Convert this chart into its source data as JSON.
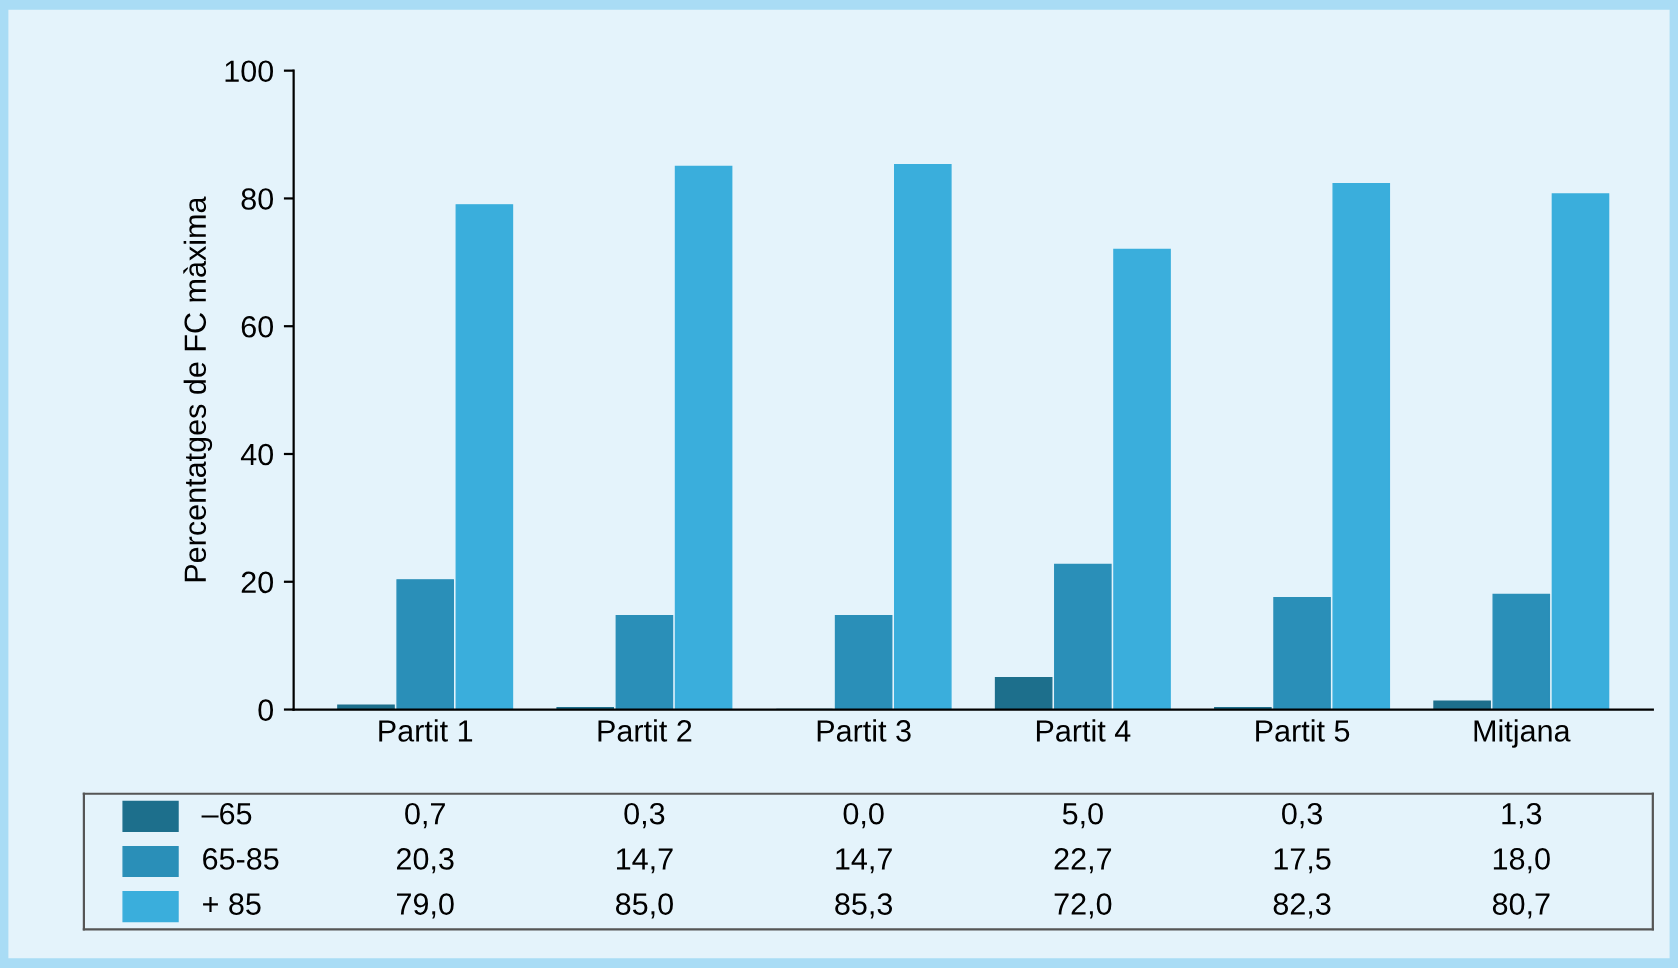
{
  "chart_data": {
    "type": "bar",
    "ylabel": "Percentatges de FC màxima",
    "categories": [
      "Partit 1",
      "Partit 2",
      "Partit 3",
      "Partit 4",
      "Partit 5",
      "Mitjana"
    ],
    "series": [
      {
        "name": "–65",
        "color": "#1d6f8c",
        "values": [
          0.7,
          0.3,
          0.0,
          5.0,
          0.3,
          1.3
        ],
        "value_labels": [
          "0,7",
          "0,3",
          "0,0",
          "5,0",
          "0,3",
          "1,3"
        ]
      },
      {
        "name": "65-85",
        "color": "#2a8fb8",
        "values": [
          20.3,
          14.7,
          14.7,
          22.7,
          17.5,
          18.0
        ],
        "value_labels": [
          "20,3",
          "14,7",
          "14,7",
          "22,7",
          "17,5",
          "18,0"
        ]
      },
      {
        "name": "+ 85",
        "color": "#3aaedc",
        "values": [
          79.0,
          85.0,
          85.3,
          72.0,
          82.3,
          80.7
        ],
        "value_labels": [
          "79,0",
          "85,0",
          "85,3",
          "72,0",
          "82,3",
          "80,7"
        ]
      }
    ],
    "ylim": [
      0,
      100
    ],
    "yticks": [
      0,
      20,
      40,
      60,
      80,
      100
    ],
    "grid": false,
    "legend": "bottom"
  }
}
